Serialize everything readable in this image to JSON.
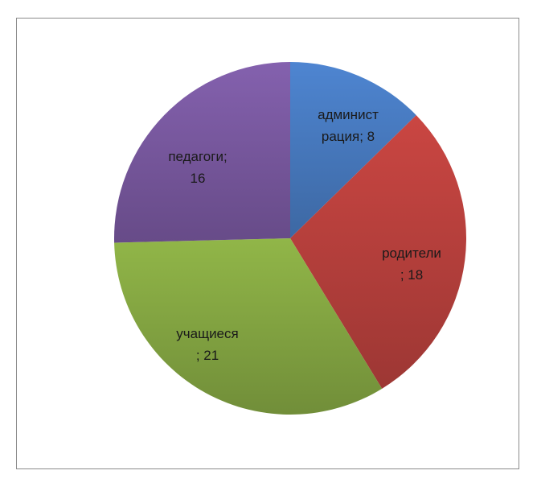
{
  "chart_data": {
    "type": "pie",
    "title": "",
    "slices": [
      {
        "label_line1": "админист",
        "label_line2": "рация; 8",
        "category": "администрация",
        "value": 8,
        "color": "#4a7fc7"
      },
      {
        "label_line1": "родители",
        "label_line2": "; 18",
        "category": "родители",
        "value": 18,
        "color": "#c0433f"
      },
      {
        "label_line1": "учащиеся",
        "label_line2": "; 21",
        "category": "учащиеся",
        "value": 21,
        "color": "#8aad45"
      },
      {
        "label_line1": "педагоги;",
        "label_line2": "16",
        "category": "педагоги",
        "value": 16,
        "color": "#7e5ca6"
      }
    ],
    "legend": "none",
    "data_labels": "inside"
  }
}
